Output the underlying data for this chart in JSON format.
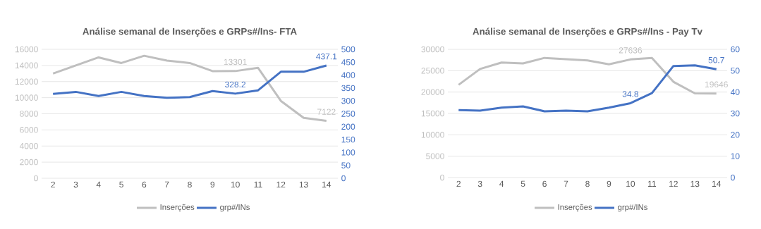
{
  "chart_data": [
    {
      "type": "line",
      "title": "Análise semanal de Inserções e GRPs#/Ins- FTA",
      "categories": [
        "2",
        "3",
        "4",
        "5",
        "6",
        "7",
        "8",
        "9",
        "10",
        "11",
        "12",
        "13",
        "14"
      ],
      "series": [
        {
          "name": "Inserções",
          "color": "#bfbfbf",
          "values": [
            13000,
            14000,
            15000,
            14300,
            15200,
            14600,
            14300,
            13300,
            13301,
            13700,
            9600,
            7500,
            7122
          ],
          "value_labels": [
            null,
            null,
            null,
            null,
            null,
            null,
            null,
            null,
            "13301",
            null,
            null,
            null,
            "7122"
          ]
        },
        {
          "name": "grp#/INs",
          "color": "#4472c4",
          "axis": "y2",
          "values": [
            327,
            335,
            319,
            335,
            319,
            312,
            315,
            338,
            328.2,
            341,
            413,
            413,
            437.1
          ],
          "value_labels": [
            null,
            null,
            null,
            null,
            null,
            null,
            null,
            null,
            "328.2",
            null,
            null,
            null,
            "437.1"
          ]
        }
      ],
      "ylim": [
        0,
        16000
      ],
      "yticks": [
        0,
        2000,
        4000,
        6000,
        8000,
        10000,
        12000,
        14000,
        16000
      ],
      "y2lim": [
        0,
        500
      ],
      "y2ticks": [
        0,
        50,
        100,
        150,
        200,
        250,
        300,
        350,
        400,
        450,
        500
      ],
      "grid": "y",
      "legend": "bottom"
    },
    {
      "type": "line",
      "title": "Análise semanal de Inserções e GRPs#/Ins - Pay Tv",
      "categories": [
        "2",
        "3",
        "4",
        "5",
        "6",
        "7",
        "8",
        "9",
        "10",
        "11",
        "12",
        "13",
        "14"
      ],
      "series": [
        {
          "name": "Inserções",
          "color": "#bfbfbf",
          "values": [
            21700,
            25400,
            26900,
            26700,
            28000,
            27700,
            27400,
            26500,
            27636,
            28000,
            22400,
            19700,
            19646
          ],
          "value_labels": [
            null,
            null,
            null,
            null,
            null,
            null,
            null,
            null,
            "27636",
            null,
            null,
            null,
            "19646"
          ]
        },
        {
          "name": "grp#/INs",
          "color": "#4472c4",
          "axis": "y2",
          "values": [
            31.6,
            31.3,
            32.7,
            33.3,
            31.0,
            31.3,
            31.0,
            32.7,
            34.8,
            39.5,
            52.2,
            52.5,
            50.7
          ],
          "value_labels": [
            null,
            null,
            null,
            null,
            null,
            null,
            null,
            null,
            "34.8",
            null,
            null,
            null,
            "50.7"
          ]
        }
      ],
      "ylim": [
        0,
        30000
      ],
      "yticks": [
        0,
        5000,
        10000,
        15000,
        20000,
        25000,
        30000
      ],
      "y2lim": [
        0,
        60
      ],
      "y2ticks": [
        0,
        10,
        20,
        30,
        40,
        50,
        60
      ],
      "grid": "y",
      "legend": "bottom"
    }
  ]
}
